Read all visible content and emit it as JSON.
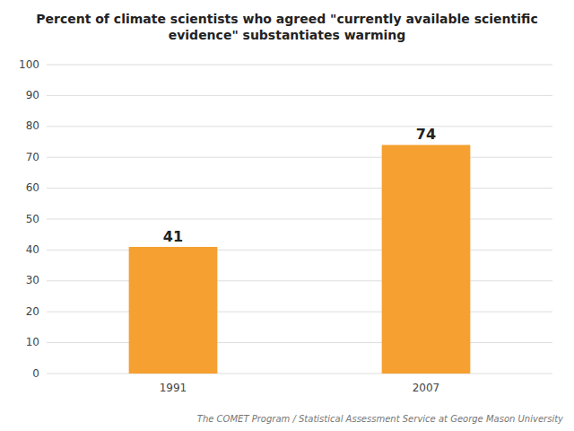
{
  "chart_data": {
    "type": "bar",
    "title": "Percent of climate scientists who agreed \"currently available scientific\nevidence\" substantiates warming",
    "categories": [
      "1991",
      "2007"
    ],
    "values": [
      41,
      74
    ],
    "color": "#F5A030",
    "ylim": [
      0,
      100
    ],
    "yticks": [
      0,
      10,
      20,
      30,
      40,
      50,
      60,
      70,
      80,
      90,
      100
    ],
    "grid": true,
    "data_labels": true,
    "annotations": [
      "The COMET Program / Statistical Assessment Service at George Mason University"
    ]
  }
}
